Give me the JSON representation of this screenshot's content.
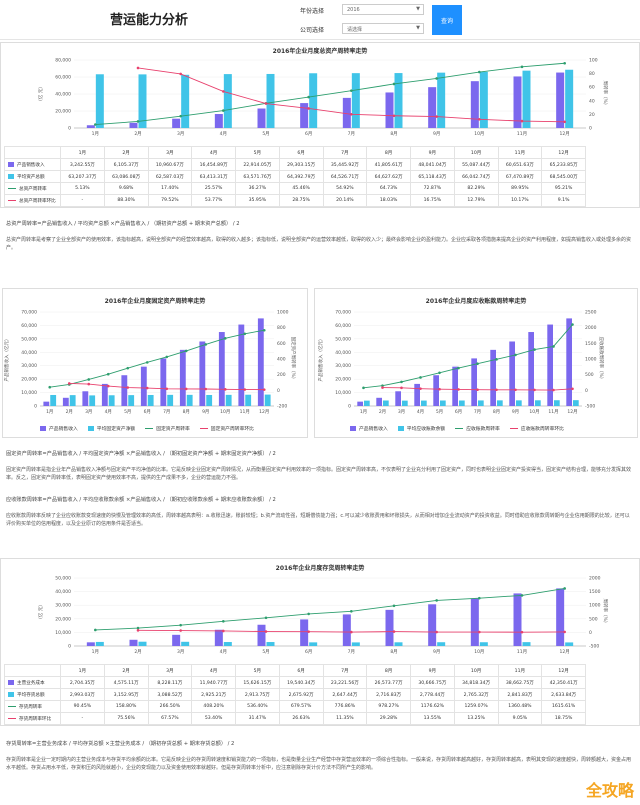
{
  "header": {
    "title": "营运能力分析",
    "year_label": "年份选择",
    "year_value": "2016",
    "company_label": "公司选择",
    "company_value": "请选择",
    "query_label": "查询"
  },
  "months": [
    "1月",
    "2月",
    "3月",
    "4月",
    "5月",
    "6月",
    "7月",
    "8月",
    "9月",
    "10月",
    "11月",
    "12月"
  ],
  "chart1": {
    "title": "2016年企业月度总资产周转率走势",
    "ylabel_left": "（亿 元）",
    "ylabel_right": "周转率（%）",
    "left_ticks": [
      "80,000",
      "60,000",
      "40,000",
      "20,000",
      "0"
    ],
    "right_ticks": [
      "100",
      "80",
      "60",
      "40",
      "20",
      "0"
    ],
    "rows": [
      {
        "label": "产品销售收入",
        "values": [
          "3,242.55万",
          "6,105.37万",
          "10,960.67万",
          "16,454.89万",
          "22,914.05万",
          "29,303.15万",
          "35,445.92万",
          "41,805.61万",
          "48,041.04万",
          "55,087.44万",
          "60,651.63万",
          "65,233.85万"
        ]
      },
      {
        "label": "平均资产总额",
        "values": [
          "63,207.37万",
          "63,086.08万",
          "62,587.03万",
          "63,413.31万",
          "63,571.76万",
          "64,392.79万",
          "64,526.71万",
          "64,627.62万",
          "65,118.43万",
          "66,042.74万",
          "67,470.89万",
          "68,545.00万"
        ]
      },
      {
        "label": "总资产周转率",
        "values": [
          "5.13%",
          "9.68%",
          "17.40%",
          "25.57%",
          "36.27%",
          "45.46%",
          "54.92%",
          "64.73%",
          "72.87%",
          "82.29%",
          "89.95%",
          "95.21%"
        ]
      },
      {
        "label": "总资产周转率环比",
        "values": [
          "-",
          "88.30%",
          "79.52%",
          "53.77%",
          "35.95%",
          "28.75%",
          "20.14%",
          "18.03%",
          "16.75%",
          "12.79%",
          "10.17%",
          "9.1%"
        ]
      }
    ]
  },
  "chart_data": [
    {
      "type": "bar",
      "categories": [
        "1月",
        "2月",
        "3月",
        "4月",
        "5月",
        "6月",
        "7月",
        "8月",
        "9月",
        "10月",
        "11月",
        "12月"
      ],
      "series": [
        {
          "name": "产品销售收入",
          "kind": "bar",
          "axis": "left",
          "values": [
            3242.55,
            6105.37,
            10960.67,
            16454.89,
            22914.05,
            29303.15,
            35445.92,
            41805.61,
            48041.04,
            55087.44,
            60651.63,
            65233.85
          ]
        },
        {
          "name": "平均资产总额",
          "kind": "bar",
          "axis": "left",
          "values": [
            63207.37,
            63086.08,
            62587.03,
            63413.31,
            63571.76,
            64392.79,
            64526.71,
            64627.62,
            65118.43,
            66042.74,
            67470.89,
            68545.0
          ]
        },
        {
          "name": "总资产周转率",
          "kind": "line",
          "axis": "right",
          "values": [
            5.13,
            9.68,
            17.4,
            25.57,
            36.27,
            45.46,
            54.92,
            64.73,
            72.87,
            82.29,
            89.95,
            95.21
          ]
        },
        {
          "name": "总资产周转率环比",
          "kind": "line",
          "axis": "right",
          "values": [
            null,
            88.3,
            79.52,
            53.77,
            35.95,
            28.75,
            20.14,
            18.03,
            16.75,
            12.79,
            10.17,
            9.1
          ]
        }
      ],
      "title": "2016年企业月度总资产周转率走势",
      "ylim_left": [
        0,
        80000
      ],
      "ylim_right": [
        0,
        100
      ],
      "colors": [
        "#7b68ee",
        "#40c4e8",
        "#2e9e6e",
        "#e8416d"
      ]
    },
    {
      "type": "bar",
      "categories": [
        "1月",
        "2月",
        "3月",
        "4月",
        "5月",
        "6月",
        "7月",
        "8月",
        "9月",
        "10月",
        "11月",
        "12月"
      ],
      "series": [
        {
          "name": "产品销售收入",
          "kind": "bar",
          "axis": "left",
          "values": [
            3242.55,
            6105.37,
            10960.67,
            16454.89,
            22914.05,
            29303.15,
            35445.92,
            41805.61,
            48041.04,
            55087.44,
            60651.63,
            65233.85
          ]
        },
        {
          "name": "平均固定资产净额",
          "kind": "bar",
          "axis": "left",
          "values": [
            8200,
            8100,
            7900,
            8000,
            8100,
            8200,
            8300,
            8300,
            8200,
            8300,
            8400,
            8500
          ]
        },
        {
          "name": "固定资产周转率",
          "kind": "line",
          "axis": "right",
          "values": [
            40,
            75,
            139,
            206,
            283,
            357,
            427,
            503,
            586,
            664,
            722,
            767
          ]
        },
        {
          "name": "固定资产周转率环比",
          "kind": "line",
          "axis": "right",
          "values": [
            null,
            88,
            80,
            54,
            36,
            29,
            20,
            18,
            17,
            13,
            10,
            9
          ]
        }
      ],
      "title": "2016年企业月度固定资产周转率走势",
      "ylim_left": [
        0,
        70000
      ],
      "ylim_right": [
        -200,
        1000
      ]
    },
    {
      "type": "bar",
      "categories": [
        "1月",
        "2月",
        "3月",
        "4月",
        "5月",
        "6月",
        "7月",
        "8月",
        "9月",
        "10月",
        "11月",
        "12月"
      ],
      "series": [
        {
          "name": "产品销售收入",
          "kind": "bar",
          "axis": "left",
          "values": [
            3242.55,
            6105.37,
            10960.67,
            16454.89,
            22914.05,
            29303.15,
            35445.92,
            41805.61,
            48041.04,
            55087.44,
            60651.63,
            65233.85
          ]
        },
        {
          "name": "平均应收账款余额",
          "kind": "bar",
          "axis": "left",
          "values": [
            4000,
            4100,
            4000,
            4050,
            4100,
            4100,
            4150,
            4200,
            4200,
            4250,
            4300,
            4350
          ]
        },
        {
          "name": "应收账款周转率",
          "kind": "line",
          "axis": "right",
          "values": [
            80,
            150,
            270,
            410,
            560,
            710,
            850,
            990,
            1130,
            1300,
            1400,
            2100
          ]
        },
        {
          "name": "应收账款周转率环比",
          "kind": "line",
          "axis": "right",
          "values": [
            null,
            88,
            80,
            54,
            36,
            29,
            20,
            18,
            17,
            13,
            10,
            50
          ]
        }
      ],
      "title": "2016年企业月度应收账款周转率走势",
      "ylim_left": [
        0,
        70000
      ],
      "ylim_right": [
        -500,
        2500
      ]
    },
    {
      "type": "bar",
      "categories": [
        "1月",
        "2月",
        "3月",
        "4月",
        "5月",
        "6月",
        "7月",
        "8月",
        "9月",
        "10月",
        "11月",
        "12月"
      ],
      "series": [
        {
          "name": "主营业务成本",
          "kind": "bar",
          "axis": "left",
          "values": [
            2704.35,
            4575.11,
            8228.11,
            11940.77,
            15626.15,
            19540.34,
            23221.56,
            26573.77,
            30666.75,
            34818.34,
            38662.75,
            42350.41
          ]
        },
        {
          "name": "平均存货总额",
          "kind": "bar",
          "axis": "left",
          "values": [
            2993.03,
            3152.95,
            3088.52,
            2925.21,
            2913.75,
            2675.92,
            2647.44,
            2716.83,
            2778.44,
            2765.32,
            2841.83,
            2633.84
          ]
        },
        {
          "name": "存货周转率",
          "kind": "line",
          "axis": "right",
          "values": [
            90.45,
            158.8,
            266.5,
            408.2,
            536.4,
            679.57,
            776.86,
            978.27,
            1176.62,
            1259.07,
            1360.48,
            1615.61
          ]
        },
        {
          "name": "存货周转率环比",
          "kind": "line",
          "axis": "right",
          "values": [
            null,
            75.56,
            67.57,
            53.4,
            31.47,
            26.63,
            11.35,
            29.28,
            13.55,
            13.25,
            9.05,
            18.75
          ]
        }
      ],
      "title": "2016年企业月度存货周转率走势",
      "ylim_left": [
        0,
        50000
      ],
      "ylim_right": [
        -500,
        2000
      ]
    }
  ],
  "text1": {
    "formula": "总资产周转率=产品销售收入 / 平均资产总额 ×产品销售收入 / （期初资产总额 + 期末资产总额） / 2",
    "desc": "总资产周转率是考察了企业全部资产的使用效率，该指标越高，说明全部资产的经营效率越高，取得的收入越多；该指标低，说明全部资产的运营效率越低，取得的收入少；最终会影响企业的盈利能力。企业应采取各项措施来提高企业的资产利用程度，如提高销售收入或处理多余的资产。"
  },
  "chart2": {
    "title": "2016年企业月度固定资产周转率走势",
    "ylabel_left": "产品销售收入（亿元）",
    "ylabel_right": "固定资产周转率（%）",
    "left_ticks": [
      "70,000",
      "60,000",
      "50,000",
      "40,000",
      "30,000",
      "20,000",
      "10,000",
      "0"
    ],
    "right_ticks": [
      "1000",
      "800",
      "600",
      "400",
      "200",
      "0",
      "-200"
    ],
    "legend": [
      "产品销售收入",
      "平均固定资产净额",
      "固定资产周转率",
      "固定资产周转率环比"
    ]
  },
  "chart3": {
    "title": "2016年企业月度应收账款周转率走势",
    "ylabel_left": "产品销售收入（亿元）",
    "ylabel_right": "应收账款周转率（%）",
    "left_ticks": [
      "70,000",
      "60,000",
      "50,000",
      "40,000",
      "30,000",
      "20,000",
      "10,000",
      "0"
    ],
    "right_ticks": [
      "2500",
      "2000",
      "1500",
      "1000",
      "500",
      "0",
      "-500"
    ],
    "legend": [
      "产品销售收入",
      "平均应收账款余额",
      "应收账款周转率",
      "应收账款周转率环比"
    ]
  },
  "text2": {
    "formula": "固定资产周转率=产品销售收入 / 平均固定资产净额 ×产品销售收入 / （期初固定资产净额 + 期末固定资产净额） / 2",
    "desc": "固定资产周转率是指企业年产品销售收入净额与固定资产平均净值的比率。它是反映企业固定资产周转情况，从而衡量固定资产利用效率的一项指标。固定资产周转率高，不仅表明了企业充分利用了固定资产，同时也表明企业固定资产投资得当，固定资产结构合理，能够充分发挥其效率。反之，固定资产周转率低，表明固定资产使用效率不高，提供的生产成果不多，企业的营运能力不强。"
  },
  "text3": {
    "formula": "应收账款周转率=产品销售收入 / 平均应收账款余额 ×产品销售收入 / （期初应收账款余额 + 期末应收账款余额） / 2",
    "desc": "应收账款周转率反映了企业应收账款变现速度的快慢及管理效率的高低，周转率越高表明：a.收账迅速，账龄较短；b.资产流动性强，短期偿债能力强；c.可以减少收账费用和坏账损失，从而相对增加企业流动资产的投资收益。同时借助应收账款周转期与企业信用期限的比较，还可以评价购买单位的信用程度，以及企业原订的信用条件是否适当。"
  },
  "chart4": {
    "title": "2016年企业月度存货周转率走势",
    "ylabel_left": "（亿 元）",
    "ylabel_right": "周转率（%）",
    "left_ticks": [
      "50,000",
      "40,000",
      "30,000",
      "20,000",
      "10,000",
      "0"
    ],
    "right_ticks": [
      "2000",
      "1500",
      "1000",
      "500",
      "0",
      "-500"
    ],
    "rows": [
      {
        "label": "主营业务成本",
        "values": [
          "2,704.35万",
          "4,575.11万",
          "8,228.11万",
          "11,940.77万",
          "15,626.15万",
          "19,540.34万",
          "23,221.56万",
          "26,573.77万",
          "30,666.75万",
          "34,818.34万",
          "38,662.75万",
          "42,350.41万"
        ]
      },
      {
        "label": "平均存货总额",
        "values": [
          "2,993.03万",
          "3,152.95万",
          "3,088.52万",
          "2,925.21万",
          "2,913.75万",
          "2,675.92万",
          "2,647.44万",
          "2,716.83万",
          "2,778.44万",
          "2,765.32万",
          "2,841.83万",
          "2,633.84万"
        ]
      },
      {
        "label": "存货周转率",
        "values": [
          "90.45%",
          "158.80%",
          "266.50%",
          "408.20%",
          "536.40%",
          "679.57%",
          "776.86%",
          "978.27%",
          "1176.62%",
          "1259.07%",
          "1360.48%",
          "1615.61%"
        ]
      },
      {
        "label": "存货周转率环比",
        "values": [
          "-",
          "75.56%",
          "67.57%",
          "53.40%",
          "31.47%",
          "26.63%",
          "11.35%",
          "29.28%",
          "13.55%",
          "13.25%",
          "9.05%",
          "18.75%"
        ]
      }
    ]
  },
  "text4": {
    "formula": "存货周转率=主营业务成本 / 平均存货总额 ×主营业务成本 / （期初存货总额 + 期末存货总额） / 2",
    "desc": "存货周转率是企业一定时期内的主营业务成本与存货平均余额的比率。它是反映企业的存货周转速度和销货能力的一项指标，也是衡量企业生产经营中存货营运效率的一项综合性指标。一般来说，存货周转率越高越好，存货周转率越高，表明其变现的速度越快，周转额越大，资金占用水平越低。存货占用水平低，存货积压的风险就越小，企业的变现能力以及资金使用效率就越好。但是存货周转率分析中，应注意剔除存货计价方法不同所产生的影响。"
  },
  "watermark": "全攻略"
}
